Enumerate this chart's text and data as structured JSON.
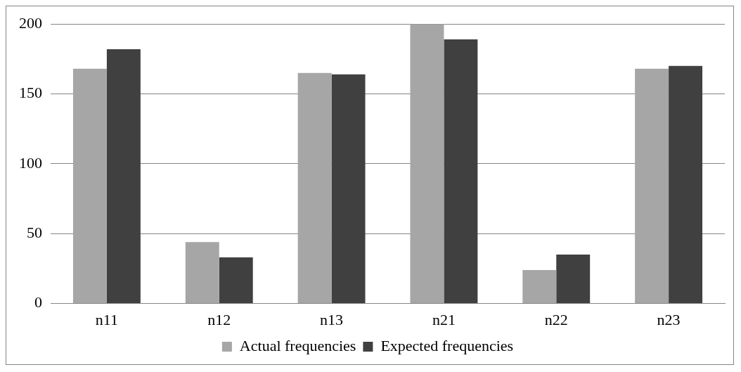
{
  "chart_data": {
    "type": "bar",
    "categories": [
      "n11",
      "n12",
      "n13",
      "n21",
      "n22",
      "n23"
    ],
    "series": [
      {
        "name": "Actual frequencies",
        "color": "#a6a6a6",
        "values": [
          168,
          44,
          165,
          200,
          24,
          168
        ]
      },
      {
        "name": "Expected frequencies",
        "color": "#404040",
        "values": [
          182,
          33,
          164,
          189,
          35,
          170
        ]
      }
    ],
    "ylim": [
      0,
      200
    ],
    "yticks": [
      0,
      50,
      100,
      150,
      200
    ],
    "grid": "y",
    "legend": "bottom"
  }
}
